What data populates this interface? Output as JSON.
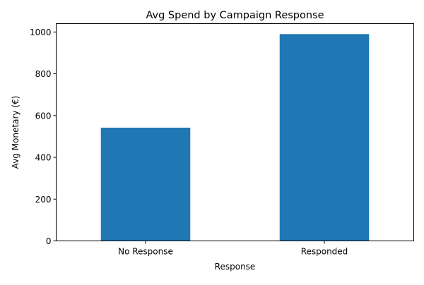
{
  "chart_data": {
    "type": "bar",
    "title": "Avg Spend by Campaign Response",
    "xlabel": "Response",
    "ylabel": "Avg Monetary (€)",
    "categories": [
      "No Response",
      "Responded"
    ],
    "values": [
      542,
      990
    ],
    "ylim": [
      0,
      1040
    ],
    "yticks": [
      0,
      200,
      400,
      600,
      800,
      1000
    ],
    "grid": false,
    "legend": "none",
    "bar_color": "#1f77b4"
  }
}
